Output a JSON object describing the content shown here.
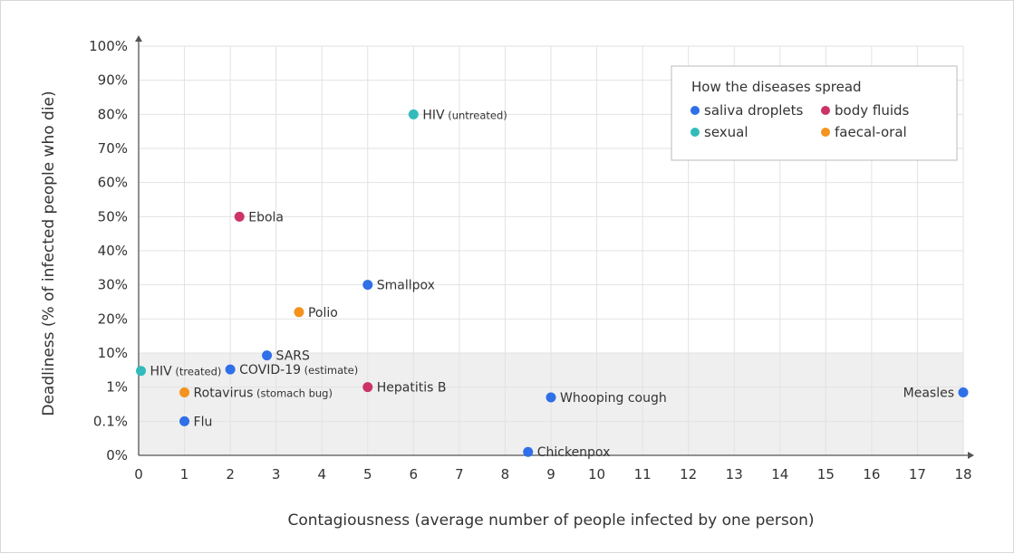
{
  "chart_data": {
    "type": "scatter",
    "title": "",
    "xlabel": "Contagiousness (average number of people infected by one person)",
    "ylabel": "Deadliness (% of infected people who die)",
    "xlim": [
      0,
      18
    ],
    "x_ticks": [
      "0",
      "1",
      "2",
      "3",
      "4",
      "5",
      "6",
      "7",
      "8",
      "9",
      "10",
      "11",
      "12",
      "13",
      "14",
      "15",
      "16",
      "17",
      "18"
    ],
    "y_scale_note": "non-linear: bottom band is log-like (0%, 0.1%, 1%, 10%), above 10% linear",
    "y_ticks": [
      "0%",
      "0.1%",
      "1%",
      "10%",
      "20%",
      "30%",
      "40%",
      "50%",
      "60%",
      "70%",
      "80%",
      "90%",
      "100%"
    ],
    "y_tick_values": [
      0,
      0.1,
      1,
      10,
      20,
      30,
      40,
      50,
      60,
      70,
      80,
      90,
      100
    ],
    "shaded_band": {
      "from": 0,
      "to": 10,
      "color": "#efefef"
    },
    "legend": {
      "title": "How the diseases spread",
      "position": "top-right",
      "items": [
        {
          "key": "saliva",
          "label": "saliva droplets",
          "color": "#2f6fe8"
        },
        {
          "key": "body",
          "label": "body fluids",
          "color": "#cc3366"
        },
        {
          "key": "sexual",
          "label": "sexual",
          "color": "#33bbbb"
        },
        {
          "key": "faecal",
          "label": "faecal-oral",
          "color": "#f4931e"
        }
      ]
    },
    "points": [
      {
        "name": "HIV",
        "note": "(untreated)",
        "x": 6,
        "y": 80,
        "group": "sexual",
        "label_side": "right"
      },
      {
        "name": "Ebola",
        "note": "",
        "x": 2.2,
        "y": 50,
        "group": "body",
        "label_side": "right"
      },
      {
        "name": "Smallpox",
        "note": "",
        "x": 5,
        "y": 30,
        "group": "saliva",
        "label_side": "right"
      },
      {
        "name": "Polio",
        "note": "",
        "x": 3.5,
        "y": 22,
        "group": "faecal",
        "label_side": "right"
      },
      {
        "name": "SARS",
        "note": "",
        "x": 2.8,
        "y": 8.5,
        "group": "saliva",
        "label_side": "right"
      },
      {
        "name": "HIV",
        "note": "(treated)",
        "x": 0.05,
        "y": 3,
        "group": "sexual",
        "label_side": "right"
      },
      {
        "name": "COVID-19",
        "note": "(estimate)",
        "x": 2,
        "y": 3.3,
        "group": "saliva",
        "label_side": "right"
      },
      {
        "name": "Hepatitis B",
        "note": "",
        "x": 5,
        "y": 1,
        "group": "body",
        "label_side": "right"
      },
      {
        "name": "Rotavirus",
        "note": "(stomach bug)",
        "x": 1,
        "y": 0.7,
        "group": "faecal",
        "label_side": "right"
      },
      {
        "name": "Whooping cough",
        "note": "",
        "x": 9,
        "y": 0.5,
        "group": "saliva",
        "label_side": "right"
      },
      {
        "name": "Measles",
        "note": "",
        "x": 18,
        "y": 0.7,
        "group": "saliva",
        "label_side": "left"
      },
      {
        "name": "Flu",
        "note": "",
        "x": 1,
        "y": 0.1,
        "group": "saliva",
        "label_side": "right"
      },
      {
        "name": "Chickenpox",
        "note": "",
        "x": 8.5,
        "y": 0.01,
        "group": "saliva",
        "label_side": "right"
      }
    ]
  }
}
